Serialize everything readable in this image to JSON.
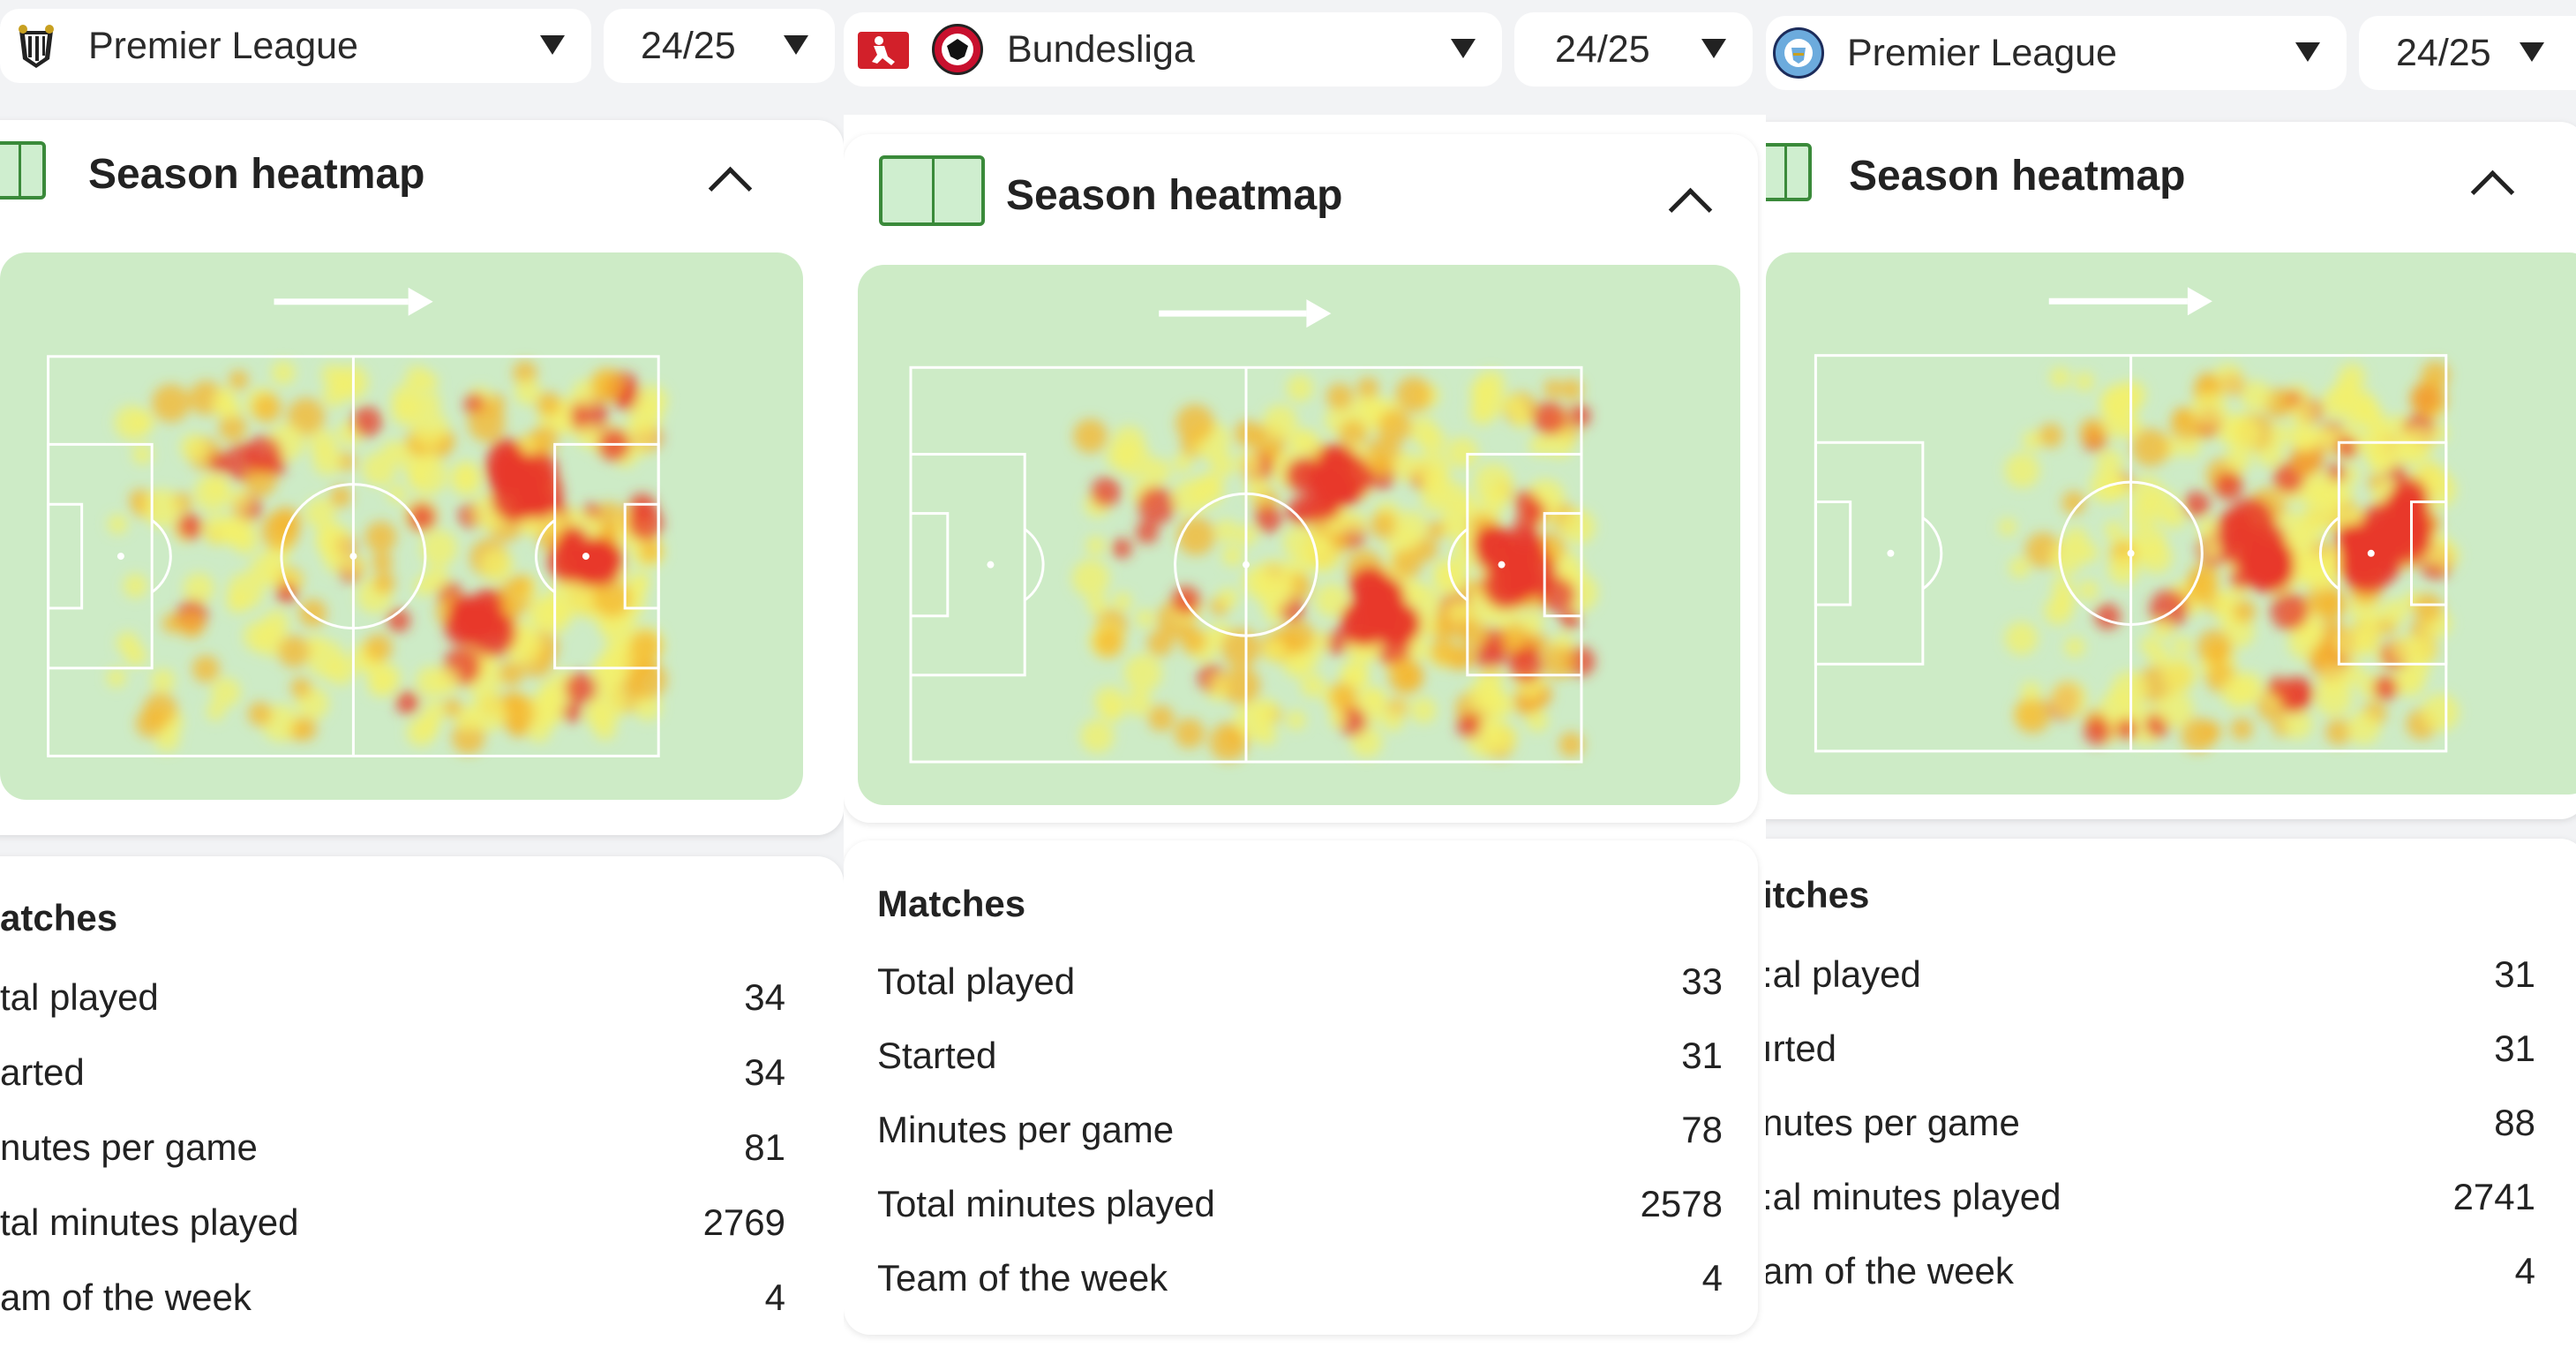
{
  "panels": [
    {
      "league": "Premier League",
      "season": "24/25",
      "club_logo": "newcastle-crest-icon",
      "heatmap_title": "Season heatmap",
      "stats_title": "atches",
      "stats": [
        {
          "label": "tal played",
          "value": "34"
        },
        {
          "label": "arted",
          "value": "34"
        },
        {
          "label": "nutes per game",
          "value": "81"
        },
        {
          "label": "tal minutes played",
          "value": "2769"
        },
        {
          "label": "am of the week",
          "value": "4"
        }
      ]
    },
    {
      "league": "Bundesliga",
      "season": "24/25",
      "club_logo": "eintracht-frankfurt-eagle-icon",
      "league_logo": "bundesliga-logo-icon",
      "heatmap_title": "Season heatmap",
      "stats_title": "Matches",
      "stats": [
        {
          "label": "Total played",
          "value": "33"
        },
        {
          "label": "Started",
          "value": "31"
        },
        {
          "label": "Minutes per game",
          "value": "78"
        },
        {
          "label": "Total minutes played",
          "value": "2578"
        },
        {
          "label": "Team of the week",
          "value": "4"
        }
      ]
    },
    {
      "league": "Premier League",
      "season": "24/25",
      "club_logo": "manchester-city-crest-icon",
      "heatmap_title": "Season heatmap",
      "stats_title": "itches",
      "stats": [
        {
          "label": ":al played",
          "value": "31"
        },
        {
          "label": "ırted",
          "value": "31"
        },
        {
          "label": "nutes per game",
          "value": "88"
        },
        {
          "label": ":al minutes played",
          "value": "2741"
        },
        {
          "label": "am of the week",
          "value": "4"
        }
      ]
    }
  ],
  "icons": {
    "dropdown": "caret-down-icon",
    "collapse": "chevron-up-icon",
    "pitch": "pitch-icon",
    "direction": "attack-direction-arrow-icon"
  },
  "colors": {
    "pitch_bg": "#cdebc6",
    "heat_low": "#f3f06a",
    "heat_mid": "#f5b52e",
    "heat_high": "#e83a2a"
  }
}
